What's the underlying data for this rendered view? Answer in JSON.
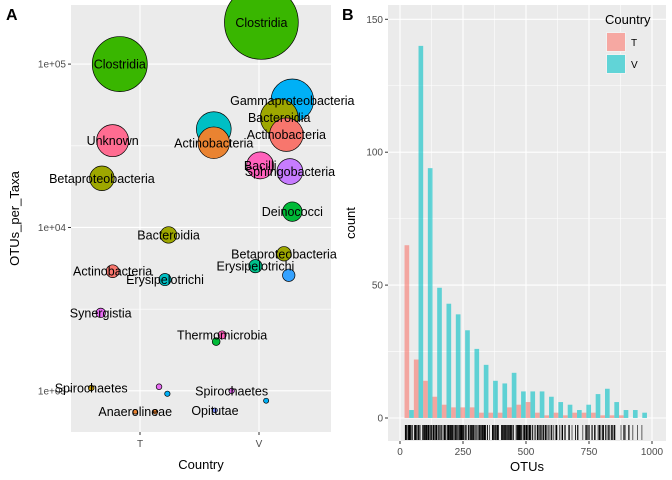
{
  "panel_labels": {
    "a": "A",
    "b": "B"
  },
  "chart_data": [
    {
      "type": "scatter",
      "panel": "A",
      "xlabel": "Country",
      "ylabel": "OTUs_per_Taxa",
      "y_scale": "log10",
      "ylim": [
        560,
        230000
      ],
      "categories": [
        "T",
        "V"
      ],
      "yticks": [
        {
          "value": 1000,
          "label": "1e+03"
        },
        {
          "value": 10000,
          "label": "1e+04"
        },
        {
          "value": 100000,
          "label": "1e+05"
        }
      ],
      "grid": true,
      "points": [
        {
          "label": "Clostridia",
          "country": "V",
          "jitter": 0.02,
          "y": 180000,
          "size": 180000,
          "color": "#39B600"
        },
        {
          "label": "Clostridia",
          "country": "T",
          "jitter": -0.17,
          "y": 100000,
          "size": 100000,
          "color": "#39B600"
        },
        {
          "label": "Gammaproteobacteria",
          "country": "V",
          "jitter": 0.28,
          "y": 60000,
          "size": 60000,
          "color": "#00B0F6"
        },
        {
          "label": "",
          "country": "V",
          "jitter": -0.38,
          "y": 40000,
          "size": 40000,
          "color": "#00BFC4"
        },
        {
          "label": "Bacteroidia",
          "country": "V",
          "jitter": 0.17,
          "y": 47000,
          "size": 47000,
          "color": "#9EA700"
        },
        {
          "label": "Actinobacteria",
          "country": "V",
          "jitter": 0.23,
          "y": 37000,
          "size": 37000,
          "color": "#F8766D"
        },
        {
          "label": "Actinobacteria",
          "country": "V",
          "jitter": -0.38,
          "y": 33000,
          "size": 33000,
          "color": "#EA8331"
        },
        {
          "label": "Unknown",
          "country": "T",
          "jitter": -0.23,
          "y": 34000,
          "size": 34000,
          "color": "#FF6C91"
        },
        {
          "label": "Bacilli",
          "country": "V",
          "jitter": 0.01,
          "y": 24000,
          "size": 24000,
          "color": "#FF62BC"
        },
        {
          "label": "Sphingobacteria",
          "country": "V",
          "jitter": 0.26,
          "y": 22000,
          "size": 22000,
          "color": "#C77CFF"
        },
        {
          "label": "Betaproteobacteria",
          "country": "T",
          "jitter": -0.32,
          "y": 20000,
          "size": 20000,
          "color": "#9EA700"
        },
        {
          "label": "Deinococci",
          "country": "V",
          "jitter": 0.28,
          "y": 12500,
          "size": 12500,
          "color": "#00BA38"
        },
        {
          "label": "Bacteroidia",
          "country": "T",
          "jitter": 0.24,
          "y": 9000,
          "size": 9000,
          "color": "#9EA700"
        },
        {
          "label": "Betaproteobacteria",
          "country": "V",
          "jitter": 0.21,
          "y": 6900,
          "size": 6900,
          "color": "#9EA700"
        },
        {
          "label": "Erysipelotrichi",
          "country": "V",
          "jitter": -0.03,
          "y": 5800,
          "size": 5800,
          "color": "#00C08B"
        },
        {
          "label": "",
          "country": "V",
          "jitter": 0.25,
          "y": 5100,
          "size": 5100,
          "color": "#35A2FF"
        },
        {
          "label": "Actinobacteria",
          "country": "T",
          "jitter": -0.23,
          "y": 5400,
          "size": 5400,
          "color": "#F8766D"
        },
        {
          "label": "Erysipelotrichi",
          "country": "T",
          "jitter": 0.21,
          "y": 4800,
          "size": 4800,
          "color": "#00BFC4"
        },
        {
          "label": "Synergistia",
          "country": "T",
          "jitter": -0.33,
          "y": 3000,
          "size": 3000,
          "color": "#E76BF3"
        },
        {
          "label": "Thermomicrobia",
          "country": "V",
          "jitter": -0.31,
          "y": 2200,
          "size": 2200,
          "color": "#FF62BC"
        },
        {
          "label": "",
          "country": "V",
          "jitter": -0.36,
          "y": 2000,
          "size": 2000,
          "color": "#00BA38"
        },
        {
          "label": "Spirochaetes",
          "country": "T",
          "jitter": -0.41,
          "y": 1040,
          "size": 1040,
          "color": "#C49A00"
        },
        {
          "label": "",
          "country": "T",
          "jitter": 0.16,
          "y": 1060,
          "size": 1060,
          "color": "#E76BF3"
        },
        {
          "label": "",
          "country": "T",
          "jitter": 0.23,
          "y": 960,
          "size": 960,
          "color": "#00B0F6"
        },
        {
          "label": "Spirochaetes",
          "country": "V",
          "jitter": -0.23,
          "y": 1000,
          "size": 1000,
          "color": "#E76BF3"
        },
        {
          "label": "",
          "country": "V",
          "jitter": 0.06,
          "y": 870,
          "size": 870,
          "color": "#00B0F6"
        },
        {
          "label": "Anaerolineae",
          "country": "T",
          "jitter": -0.04,
          "y": 745,
          "size": 745,
          "color": "#EA8331"
        },
        {
          "label": "",
          "country": "T",
          "jitter": 0.13,
          "y": 745,
          "size": 745,
          "color": "#EA8331"
        },
        {
          "label": "Opitutae",
          "country": "V",
          "jitter": -0.37,
          "y": 760,
          "size": 760,
          "color": "#8494FF"
        }
      ]
    },
    {
      "type": "bar",
      "subtype": "histogram",
      "panel": "B",
      "xlabel": "OTUs",
      "ylabel": "count",
      "xlim": [
        0,
        1000
      ],
      "ylim": [
        0,
        150
      ],
      "bin_width": 37,
      "xticks": [
        {
          "value": 0,
          "label": "0"
        },
        {
          "value": 250,
          "label": "250"
        },
        {
          "value": 500,
          "label": "500"
        },
        {
          "value": 750,
          "label": "750"
        },
        {
          "value": 1000,
          "label": "1000"
        }
      ],
      "yticks": [
        {
          "value": 0,
          "label": "0"
        },
        {
          "value": 50,
          "label": "50"
        },
        {
          "value": 100,
          "label": "100"
        },
        {
          "value": 150,
          "label": "150"
        }
      ],
      "grid": true,
      "legend": {
        "title": "Country",
        "position": "top-right"
      },
      "bin_starts": [
        18,
        55,
        92,
        129,
        166,
        203,
        240,
        277,
        314,
        351,
        388,
        425,
        462,
        499,
        536,
        573,
        610,
        647,
        684,
        721,
        758,
        795,
        832,
        869,
        906,
        943
      ],
      "series": [
        {
          "name": "T",
          "color": "#F8766D",
          "values": [
            65,
            22,
            14,
            8,
            5,
            4,
            4,
            4,
            2,
            2,
            2,
            4,
            5,
            6,
            2,
            1,
            2,
            1,
            2,
            2,
            2,
            1,
            1,
            1,
            0,
            0
          ]
        },
        {
          "name": "V",
          "color": "#00BFC4",
          "values": [
            3,
            140,
            94,
            49,
            43,
            39,
            33,
            26,
            20,
            14,
            13,
            17,
            10,
            10,
            10,
            8,
            6,
            5,
            3,
            5,
            9,
            11,
            6,
            3,
            3,
            2
          ]
        }
      ]
    }
  ]
}
